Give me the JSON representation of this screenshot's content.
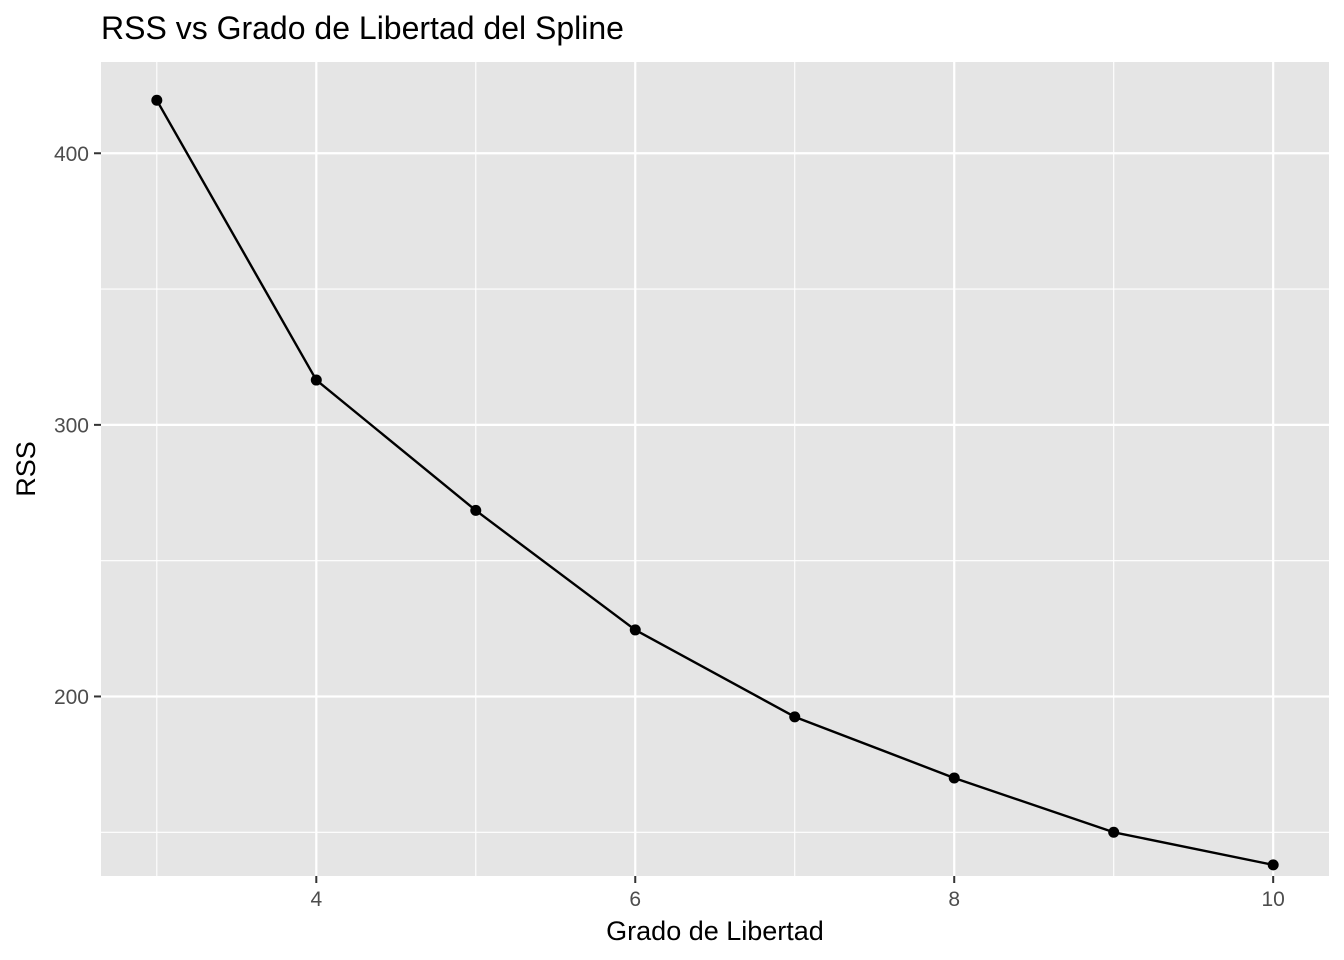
{
  "chart_data": {
    "type": "line",
    "title": "RSS vs Grado de Libertad del Spline",
    "xlabel": "Grado de Libertad",
    "ylabel": "RSS",
    "x": [
      3,
      4,
      5,
      6,
      7,
      8,
      9,
      10
    ],
    "series": [
      {
        "values": [
          419.5,
          316.5,
          268.5,
          224.5,
          192.5,
          170.0,
          150.0,
          138.0
        ],
        "color": "#000000",
        "markers": true
      }
    ],
    "xlim": [
      2.65,
      10.35
    ],
    "ylim": [
      133.9,
      433.6
    ],
    "x_ticks": [
      4,
      6,
      8,
      10
    ],
    "x_tick_labels": [
      "4",
      "6",
      "8",
      "10"
    ],
    "x_minor_ticks": [
      3,
      5,
      7,
      9
    ],
    "y_ticks": [
      200,
      300,
      400
    ],
    "y_tick_labels": [
      "200",
      "300",
      "400"
    ],
    "y_minor_ticks": [
      150,
      250,
      350
    ],
    "grid": true,
    "panel_background": "#e5e5e5",
    "grid_color": "#ffffff",
    "legend": "none"
  }
}
